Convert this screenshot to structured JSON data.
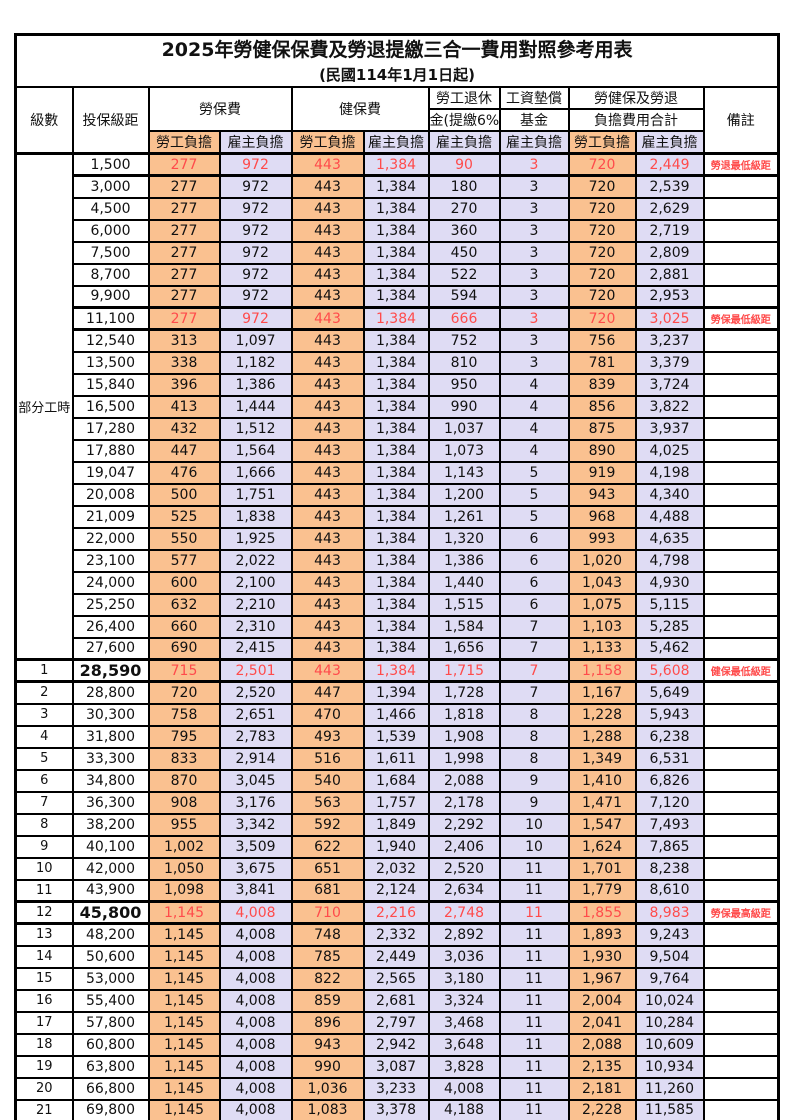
{
  "title": "2025年勞健保保費及勞退提繳三合一費用對照參考用表",
  "subtitle": "(民國114年1月1日起)",
  "colors": {
    "employee_burden_bg": "#FAC190",
    "employer_burden_bg": "#DFDCF4",
    "highlight_text": "#FF4B4B",
    "border": "#000000"
  },
  "header": {
    "level": "級數",
    "bracket": "投保級距",
    "labor_ins": "勞保費",
    "health_ins": "健保費",
    "pension_line1": "勞工退休",
    "pension_line2": "金(提繳6%)",
    "wage_fund_line1": "工資墊償",
    "wage_fund_line2": "基金",
    "total_line1": "勞健保及勞退",
    "total_line2": "負擔費用合計",
    "employee": "勞工負擔",
    "employer": "雇主負擔",
    "note": "備註"
  },
  "part_time": {
    "label": "部分工時",
    "rowspan": 23
  },
  "rows": [
    {
      "level": "",
      "bracket": "1,500",
      "li_emp": "277",
      "li_er": "972",
      "hi_emp": "443",
      "hi_er": "1,384",
      "pension": "90",
      "fund": "3",
      "tot_emp": "720",
      "tot_er": "2,449",
      "note": "勞退最低級距",
      "red": true
    },
    {
      "bracket": "3,000",
      "li_emp": "277",
      "li_er": "972",
      "hi_emp": "443",
      "hi_er": "1,384",
      "pension": "180",
      "fund": "3",
      "tot_emp": "720",
      "tot_er": "2,539",
      "note": ""
    },
    {
      "bracket": "4,500",
      "li_emp": "277",
      "li_er": "972",
      "hi_emp": "443",
      "hi_er": "1,384",
      "pension": "270",
      "fund": "3",
      "tot_emp": "720",
      "tot_er": "2,629",
      "note": ""
    },
    {
      "bracket": "6,000",
      "li_emp": "277",
      "li_er": "972",
      "hi_emp": "443",
      "hi_er": "1,384",
      "pension": "360",
      "fund": "3",
      "tot_emp": "720",
      "tot_er": "2,719",
      "note": ""
    },
    {
      "bracket": "7,500",
      "li_emp": "277",
      "li_er": "972",
      "hi_emp": "443",
      "hi_er": "1,384",
      "pension": "450",
      "fund": "3",
      "tot_emp": "720",
      "tot_er": "2,809",
      "note": ""
    },
    {
      "bracket": "8,700",
      "li_emp": "277",
      "li_er": "972",
      "hi_emp": "443",
      "hi_er": "1,384",
      "pension": "522",
      "fund": "3",
      "tot_emp": "720",
      "tot_er": "2,881",
      "note": ""
    },
    {
      "bracket": "9,900",
      "li_emp": "277",
      "li_er": "972",
      "hi_emp": "443",
      "hi_er": "1,384",
      "pension": "594",
      "fund": "3",
      "tot_emp": "720",
      "tot_er": "2,953",
      "note": ""
    },
    {
      "bracket": "11,100",
      "li_emp": "277",
      "li_er": "972",
      "hi_emp": "443",
      "hi_er": "1,384",
      "pension": "666",
      "fund": "3",
      "tot_emp": "720",
      "tot_er": "3,025",
      "note": "勞保最低級距",
      "red": true
    },
    {
      "bracket": "12,540",
      "li_emp": "313",
      "li_er": "1,097",
      "hi_emp": "443",
      "hi_er": "1,384",
      "pension": "752",
      "fund": "3",
      "tot_emp": "756",
      "tot_er": "3,237",
      "note": ""
    },
    {
      "bracket": "13,500",
      "li_emp": "338",
      "li_er": "1,182",
      "hi_emp": "443",
      "hi_er": "1,384",
      "pension": "810",
      "fund": "3",
      "tot_emp": "781",
      "tot_er": "3,379",
      "note": ""
    },
    {
      "bracket": "15,840",
      "li_emp": "396",
      "li_er": "1,386",
      "hi_emp": "443",
      "hi_er": "1,384",
      "pension": "950",
      "fund": "4",
      "tot_emp": "839",
      "tot_er": "3,724",
      "note": ""
    },
    {
      "bracket": "16,500",
      "li_emp": "413",
      "li_er": "1,444",
      "hi_emp": "443",
      "hi_er": "1,384",
      "pension": "990",
      "fund": "4",
      "tot_emp": "856",
      "tot_er": "3,822",
      "note": ""
    },
    {
      "bracket": "17,280",
      "li_emp": "432",
      "li_er": "1,512",
      "hi_emp": "443",
      "hi_er": "1,384",
      "pension": "1,037",
      "fund": "4",
      "tot_emp": "875",
      "tot_er": "3,937",
      "note": ""
    },
    {
      "bracket": "17,880",
      "li_emp": "447",
      "li_er": "1,564",
      "hi_emp": "443",
      "hi_er": "1,384",
      "pension": "1,073",
      "fund": "4",
      "tot_emp": "890",
      "tot_er": "4,025",
      "note": ""
    },
    {
      "bracket": "19,047",
      "li_emp": "476",
      "li_er": "1,666",
      "hi_emp": "443",
      "hi_er": "1,384",
      "pension": "1,143",
      "fund": "5",
      "tot_emp": "919",
      "tot_er": "4,198",
      "note": ""
    },
    {
      "bracket": "20,008",
      "li_emp": "500",
      "li_er": "1,751",
      "hi_emp": "443",
      "hi_er": "1,384",
      "pension": "1,200",
      "fund": "5",
      "tot_emp": "943",
      "tot_er": "4,340",
      "note": ""
    },
    {
      "bracket": "21,009",
      "li_emp": "525",
      "li_er": "1,838",
      "hi_emp": "443",
      "hi_er": "1,384",
      "pension": "1,261",
      "fund": "5",
      "tot_emp": "968",
      "tot_er": "4,488",
      "note": ""
    },
    {
      "bracket": "22,000",
      "li_emp": "550",
      "li_er": "1,925",
      "hi_emp": "443",
      "hi_er": "1,384",
      "pension": "1,320",
      "fund": "6",
      "tot_emp": "993",
      "tot_er": "4,635",
      "note": ""
    },
    {
      "bracket": "23,100",
      "li_emp": "577",
      "li_er": "2,022",
      "hi_emp": "443",
      "hi_er": "1,384",
      "pension": "1,386",
      "fund": "6",
      "tot_emp": "1,020",
      "tot_er": "4,798",
      "note": ""
    },
    {
      "bracket": "24,000",
      "li_emp": "600",
      "li_er": "2,100",
      "hi_emp": "443",
      "hi_er": "1,384",
      "pension": "1,440",
      "fund": "6",
      "tot_emp": "1,043",
      "tot_er": "4,930",
      "note": ""
    },
    {
      "bracket": "25,250",
      "li_emp": "632",
      "li_er": "2,210",
      "hi_emp": "443",
      "hi_er": "1,384",
      "pension": "1,515",
      "fund": "6",
      "tot_emp": "1,075",
      "tot_er": "5,115",
      "note": ""
    },
    {
      "bracket": "26,400",
      "li_emp": "660",
      "li_er": "2,310",
      "hi_emp": "443",
      "hi_er": "1,384",
      "pension": "1,584",
      "fund": "7",
      "tot_emp": "1,103",
      "tot_er": "5,285",
      "note": ""
    },
    {
      "bracket": "27,600",
      "li_emp": "690",
      "li_er": "2,415",
      "hi_emp": "443",
      "hi_er": "1,384",
      "pension": "1,656",
      "fund": "7",
      "tot_emp": "1,133",
      "tot_er": "5,462",
      "note": ""
    },
    {
      "level": "1",
      "bracket": "28,590",
      "li_emp": "715",
      "li_er": "2,501",
      "hi_emp": "443",
      "hi_er": "1,384",
      "pension": "1,715",
      "fund": "7",
      "tot_emp": "1,158",
      "tot_er": "5,608",
      "note": "健保最低級距",
      "red": true,
      "bold": true
    },
    {
      "level": "2",
      "bracket": "28,800",
      "li_emp": "720",
      "li_er": "2,520",
      "hi_emp": "447",
      "hi_er": "1,394",
      "pension": "1,728",
      "fund": "7",
      "tot_emp": "1,167",
      "tot_er": "5,649",
      "note": ""
    },
    {
      "level": "3",
      "bracket": "30,300",
      "li_emp": "758",
      "li_er": "2,651",
      "hi_emp": "470",
      "hi_er": "1,466",
      "pension": "1,818",
      "fund": "8",
      "tot_emp": "1,228",
      "tot_er": "5,943",
      "note": ""
    },
    {
      "level": "4",
      "bracket": "31,800",
      "li_emp": "795",
      "li_er": "2,783",
      "hi_emp": "493",
      "hi_er": "1,539",
      "pension": "1,908",
      "fund": "8",
      "tot_emp": "1,288",
      "tot_er": "6,238",
      "note": ""
    },
    {
      "level": "5",
      "bracket": "33,300",
      "li_emp": "833",
      "li_er": "2,914",
      "hi_emp": "516",
      "hi_er": "1,611",
      "pension": "1,998",
      "fund": "8",
      "tot_emp": "1,349",
      "tot_er": "6,531",
      "note": ""
    },
    {
      "level": "6",
      "bracket": "34,800",
      "li_emp": "870",
      "li_er": "3,045",
      "hi_emp": "540",
      "hi_er": "1,684",
      "pension": "2,088",
      "fund": "9",
      "tot_emp": "1,410",
      "tot_er": "6,826",
      "note": ""
    },
    {
      "level": "7",
      "bracket": "36,300",
      "li_emp": "908",
      "li_er": "3,176",
      "hi_emp": "563",
      "hi_er": "1,757",
      "pension": "2,178",
      "fund": "9",
      "tot_emp": "1,471",
      "tot_er": "7,120",
      "note": ""
    },
    {
      "level": "8",
      "bracket": "38,200",
      "li_emp": "955",
      "li_er": "3,342",
      "hi_emp": "592",
      "hi_er": "1,849",
      "pension": "2,292",
      "fund": "10",
      "tot_emp": "1,547",
      "tot_er": "7,493",
      "note": ""
    },
    {
      "level": "9",
      "bracket": "40,100",
      "li_emp": "1,002",
      "li_er": "3,509",
      "hi_emp": "622",
      "hi_er": "1,940",
      "pension": "2,406",
      "fund": "10",
      "tot_emp": "1,624",
      "tot_er": "7,865",
      "note": ""
    },
    {
      "level": "10",
      "bracket": "42,000",
      "li_emp": "1,050",
      "li_er": "3,675",
      "hi_emp": "651",
      "hi_er": "2,032",
      "pension": "2,520",
      "fund": "11",
      "tot_emp": "1,701",
      "tot_er": "8,238",
      "note": ""
    },
    {
      "level": "11",
      "bracket": "43,900",
      "li_emp": "1,098",
      "li_er": "3,841",
      "hi_emp": "681",
      "hi_er": "2,124",
      "pension": "2,634",
      "fund": "11",
      "tot_emp": "1,779",
      "tot_er": "8,610",
      "note": ""
    },
    {
      "level": "12",
      "bracket": "45,800",
      "li_emp": "1,145",
      "li_er": "4,008",
      "hi_emp": "710",
      "hi_er": "2,216",
      "pension": "2,748",
      "fund": "11",
      "tot_emp": "1,855",
      "tot_er": "8,983",
      "note": "勞保最高級距",
      "red": true,
      "bold": true
    },
    {
      "level": "13",
      "bracket": "48,200",
      "li_emp": "1,145",
      "li_er": "4,008",
      "hi_emp": "748",
      "hi_er": "2,332",
      "pension": "2,892",
      "fund": "11",
      "tot_emp": "1,893",
      "tot_er": "9,243",
      "note": ""
    },
    {
      "level": "14",
      "bracket": "50,600",
      "li_emp": "1,145",
      "li_er": "4,008",
      "hi_emp": "785",
      "hi_er": "2,449",
      "pension": "3,036",
      "fund": "11",
      "tot_emp": "1,930",
      "tot_er": "9,504",
      "note": ""
    },
    {
      "level": "15",
      "bracket": "53,000",
      "li_emp": "1,145",
      "li_er": "4,008",
      "hi_emp": "822",
      "hi_er": "2,565",
      "pension": "3,180",
      "fund": "11",
      "tot_emp": "1,967",
      "tot_er": "9,764",
      "note": ""
    },
    {
      "level": "16",
      "bracket": "55,400",
      "li_emp": "1,145",
      "li_er": "4,008",
      "hi_emp": "859",
      "hi_er": "2,681",
      "pension": "3,324",
      "fund": "11",
      "tot_emp": "2,004",
      "tot_er": "10,024",
      "note": ""
    },
    {
      "level": "17",
      "bracket": "57,800",
      "li_emp": "1,145",
      "li_er": "4,008",
      "hi_emp": "896",
      "hi_er": "2,797",
      "pension": "3,468",
      "fund": "11",
      "tot_emp": "2,041",
      "tot_er": "10,284",
      "note": ""
    },
    {
      "level": "18",
      "bracket": "60,800",
      "li_emp": "1,145",
      "li_er": "4,008",
      "hi_emp": "943",
      "hi_er": "2,942",
      "pension": "3,648",
      "fund": "11",
      "tot_emp": "2,088",
      "tot_er": "10,609",
      "note": ""
    },
    {
      "level": "19",
      "bracket": "63,800",
      "li_emp": "1,145",
      "li_er": "4,008",
      "hi_emp": "990",
      "hi_er": "3,087",
      "pension": "3,828",
      "fund": "11",
      "tot_emp": "2,135",
      "tot_er": "10,934",
      "note": ""
    },
    {
      "level": "20",
      "bracket": "66,800",
      "li_emp": "1,145",
      "li_er": "4,008",
      "hi_emp": "1,036",
      "hi_er": "3,233",
      "pension": "4,008",
      "fund": "11",
      "tot_emp": "2,181",
      "tot_er": "11,260",
      "note": ""
    },
    {
      "level": "21",
      "bracket": "69,800",
      "li_emp": "1,145",
      "li_er": "4,008",
      "hi_emp": "1,083",
      "hi_er": "3,378",
      "pension": "4,188",
      "fund": "11",
      "tot_emp": "2,228",
      "tot_er": "11,585",
      "note": ""
    }
  ]
}
